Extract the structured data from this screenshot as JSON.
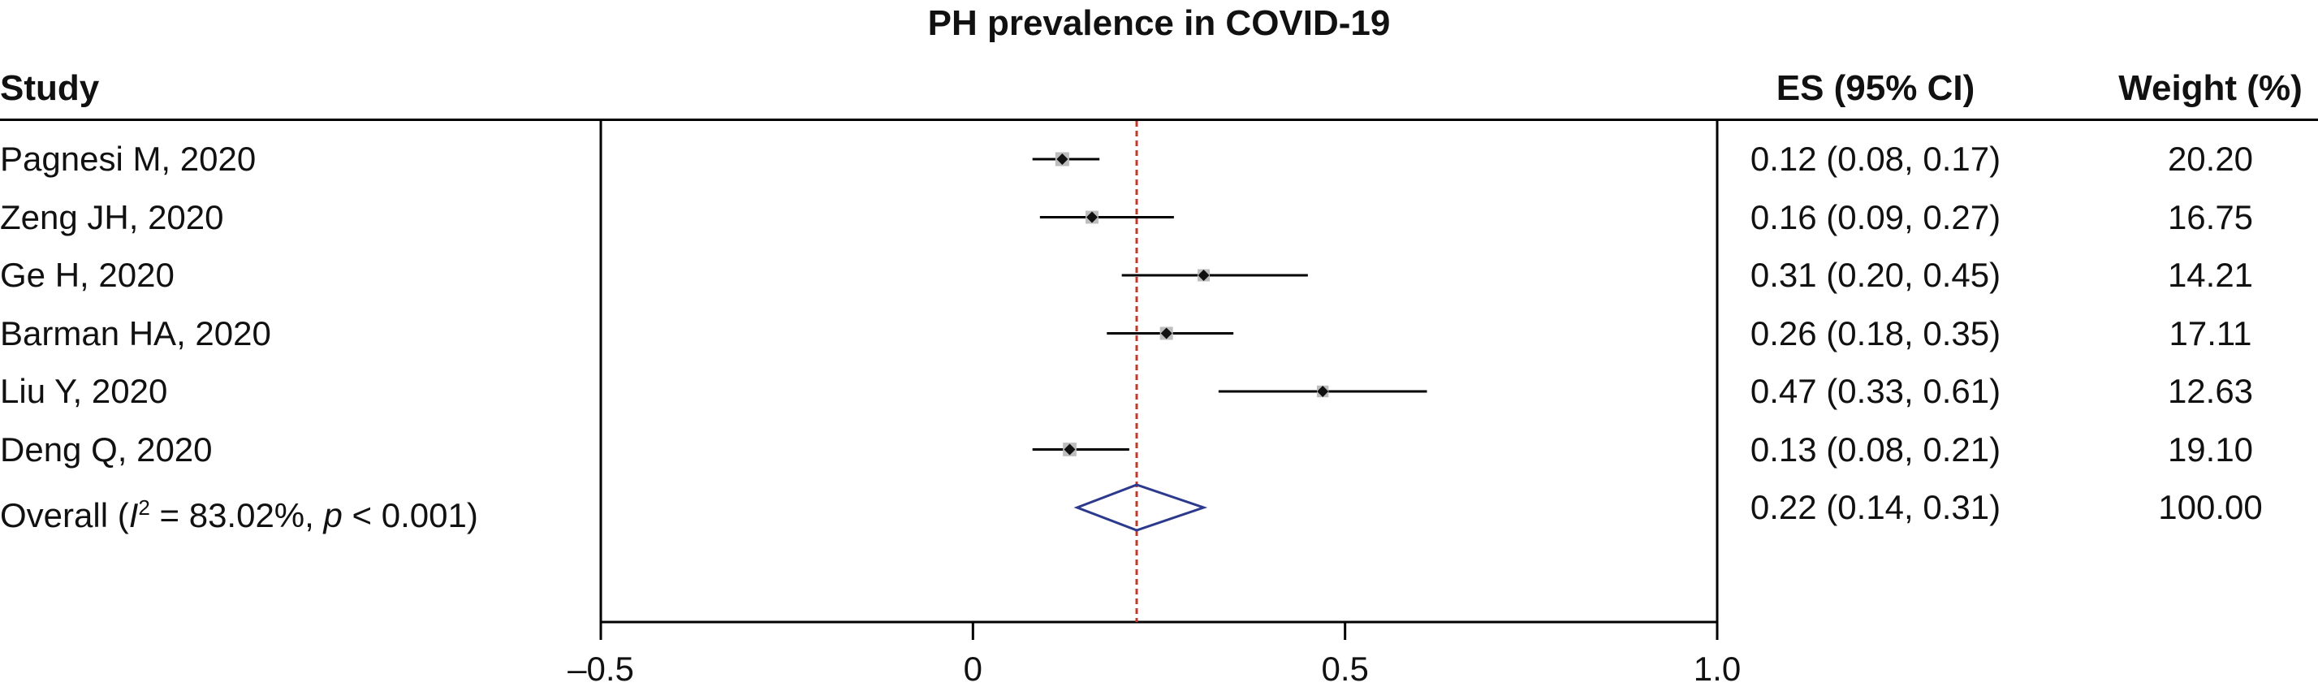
{
  "chart_data": {
    "type": "forest",
    "title": "PH prevalence in COVID-19",
    "columns": {
      "study": "Study",
      "es": "ES (95% CI)",
      "weight": "Weight (%)"
    },
    "xlim": [
      -0.5,
      1.0
    ],
    "xticks": [
      -0.5,
      0,
      0.5,
      1.0
    ],
    "xtick_labels": [
      "–0.5",
      "0",
      "0.5",
      "1.0"
    ],
    "summary_line": 0.22,
    "studies": [
      {
        "name": "Pagnesi M, 2020",
        "es": 0.12,
        "lo": 0.08,
        "hi": 0.17,
        "es_text": "0.12 (0.08, 0.17)",
        "weight": "20.20"
      },
      {
        "name": "Zeng JH, 2020",
        "es": 0.16,
        "lo": 0.09,
        "hi": 0.27,
        "es_text": "0.16 (0.09, 0.27)",
        "weight": "16.75"
      },
      {
        "name": "Ge H, 2020",
        "es": 0.31,
        "lo": 0.2,
        "hi": 0.45,
        "es_text": "0.31 (0.20, 0.45)",
        "weight": "14.21"
      },
      {
        "name": "Barman HA, 2020",
        "es": 0.26,
        "lo": 0.18,
        "hi": 0.35,
        "es_text": "0.26 (0.18, 0.35)",
        "weight": "17.11"
      },
      {
        "name": "Liu Y, 2020",
        "es": 0.47,
        "lo": 0.33,
        "hi": 0.61,
        "es_text": "0.47 (0.33, 0.61)",
        "weight": "12.63"
      },
      {
        "name": "Deng Q, 2020",
        "es": 0.13,
        "lo": 0.08,
        "hi": 0.21,
        "es_text": "0.13 (0.08, 0.21)",
        "weight": "19.10"
      }
    ],
    "overall": {
      "label_prefix": "Overall (",
      "i_symbol": "I",
      "i_sup": "2",
      "label_mid": " = 83.02%, ",
      "p_symbol": "p",
      "label_end": " < 0.001)",
      "es": 0.22,
      "lo": 0.14,
      "hi": 0.31,
      "es_text": "0.22 (0.14, 0.31)",
      "weight": "100.00"
    },
    "colors": {
      "summary_line": "#c0392b",
      "diamond": "#2b3a8c",
      "marker_box": "#bdbdbd",
      "point": "#111111"
    }
  }
}
